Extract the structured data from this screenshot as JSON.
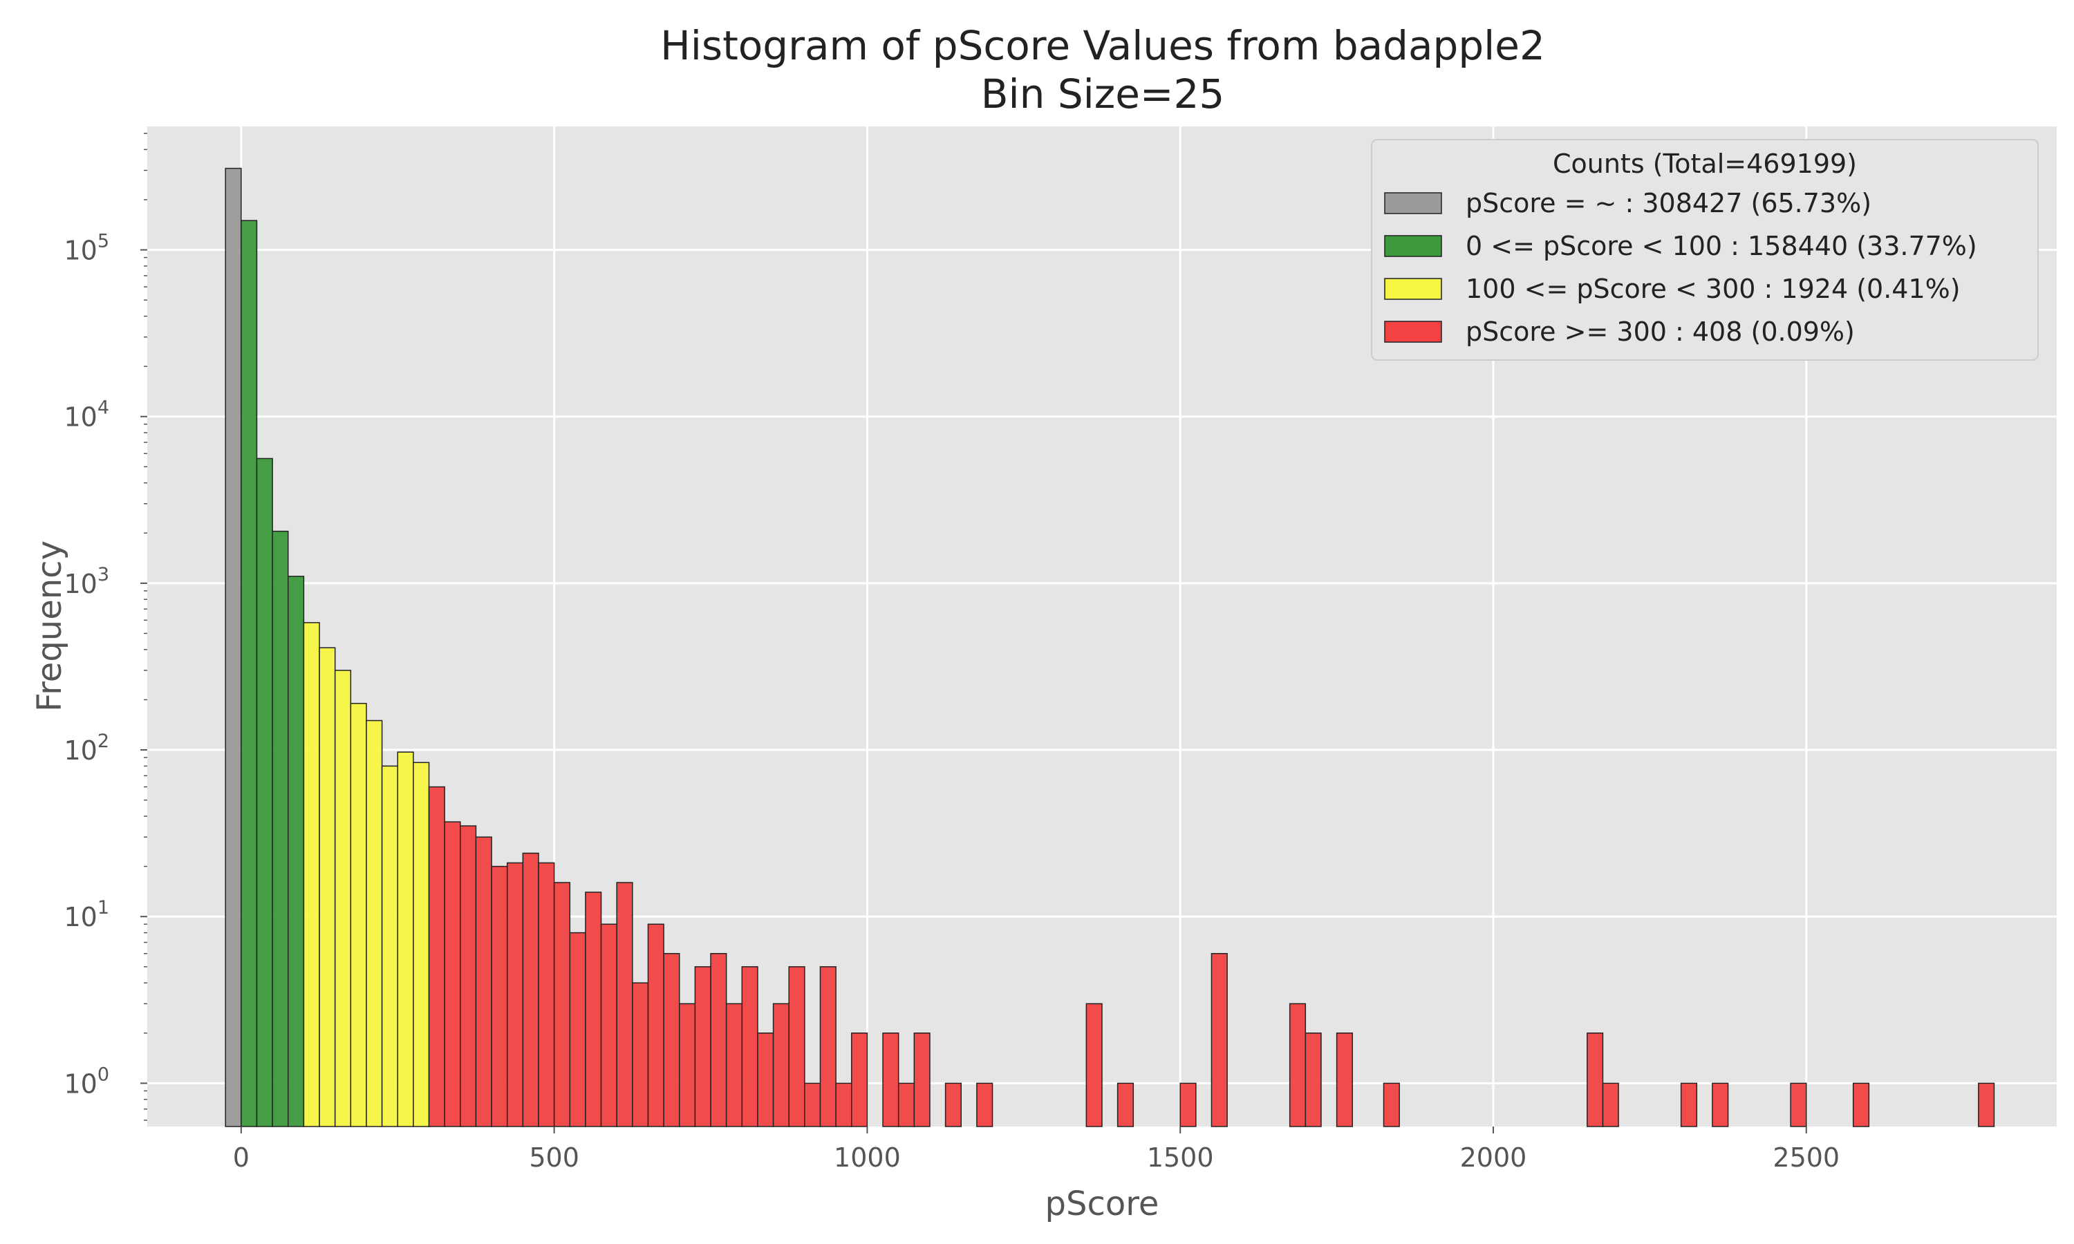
{
  "chart_data": {
    "type": "bar",
    "title": "Histogram of pScore Values from badapple2",
    "subtitle": "Bin Size=25",
    "xlabel": "pScore",
    "ylabel": "Frequency",
    "yscale": "log",
    "xlim": [
      -150,
      2900
    ],
    "ylim": [
      0.55,
      550000
    ],
    "xticks": [
      0,
      500,
      1000,
      1500,
      2000,
      2500
    ],
    "xtick_labels": [
      "0",
      "500",
      "1000",
      "1500",
      "2000",
      "2500"
    ],
    "yticks": [
      1,
      10,
      100,
      1000,
      10000,
      100000
    ],
    "ytick_labels": [
      {
        "base": "10",
        "exp": "0"
      },
      {
        "base": "10",
        "exp": "1"
      },
      {
        "base": "10",
        "exp": "2"
      },
      {
        "base": "10",
        "exp": "3"
      },
      {
        "base": "10",
        "exp": "4"
      },
      {
        "base": "10",
        "exp": "5"
      }
    ],
    "grid": true,
    "legend": {
      "title": "Counts (Total=469199)",
      "placement": "top-right",
      "entries": [
        {
          "label": "pScore = ~ : 308427 (65.73%)",
          "color": "#9a9a9a"
        },
        {
          "label": "0 <= pScore < 100 : 158440 (33.77%)",
          "color": "#3c9a3c"
        },
        {
          "label": "100 <= pScore < 300 : 1924 (0.41%)",
          "color": "#f5f543"
        },
        {
          "label": "pScore >= 300 : 408 (0.09%)",
          "color": "#f24242"
        }
      ]
    },
    "bin_width": 25,
    "series": [
      {
        "category_index": 0,
        "bins": [
          [
            -25,
            308427
          ]
        ]
      },
      {
        "category_index": 1,
        "bins": [
          [
            0,
            150000
          ],
          [
            25,
            5600
          ],
          [
            50,
            2050
          ],
          [
            75,
            1100
          ]
        ]
      },
      {
        "category_index": 2,
        "bins": [
          [
            100,
            580
          ],
          [
            125,
            410
          ],
          [
            150,
            300
          ],
          [
            175,
            190
          ],
          [
            200,
            150
          ],
          [
            225,
            80
          ],
          [
            250,
            97
          ],
          [
            275,
            84
          ]
        ]
      },
      {
        "category_index": 3,
        "bins": [
          [
            300,
            60
          ],
          [
            325,
            37
          ],
          [
            350,
            35
          ],
          [
            375,
            30
          ],
          [
            400,
            20
          ],
          [
            425,
            21
          ],
          [
            450,
            24
          ],
          [
            475,
            21
          ],
          [
            500,
            16
          ],
          [
            525,
            8
          ],
          [
            550,
            14
          ],
          [
            575,
            9
          ],
          [
            600,
            16
          ],
          [
            625,
            4
          ],
          [
            650,
            9
          ],
          [
            675,
            6
          ],
          [
            700,
            3
          ],
          [
            725,
            5
          ],
          [
            750,
            6
          ],
          [
            775,
            3
          ],
          [
            800,
            5
          ],
          [
            825,
            2
          ],
          [
            850,
            3
          ],
          [
            875,
            5
          ],
          [
            900,
            1
          ],
          [
            925,
            5
          ],
          [
            950,
            1
          ],
          [
            975,
            2
          ],
          [
            1025,
            2
          ],
          [
            1050,
            1
          ],
          [
            1075,
            2
          ],
          [
            1125,
            1
          ],
          [
            1175,
            1
          ],
          [
            1350,
            3
          ],
          [
            1400,
            1
          ],
          [
            1500,
            1
          ],
          [
            1550,
            6
          ],
          [
            1675,
            3
          ],
          [
            1700,
            2
          ],
          [
            1750,
            2
          ],
          [
            1825,
            1
          ],
          [
            2150,
            2
          ],
          [
            2175,
            1
          ],
          [
            2300,
            1
          ],
          [
            2350,
            1
          ],
          [
            2475,
            1
          ],
          [
            2575,
            1
          ],
          [
            2775,
            1
          ]
        ]
      }
    ],
    "colors": {
      "plot_background": "#e5e5e5",
      "grid": "#ffffff",
      "bar_edge": "#222222"
    }
  }
}
